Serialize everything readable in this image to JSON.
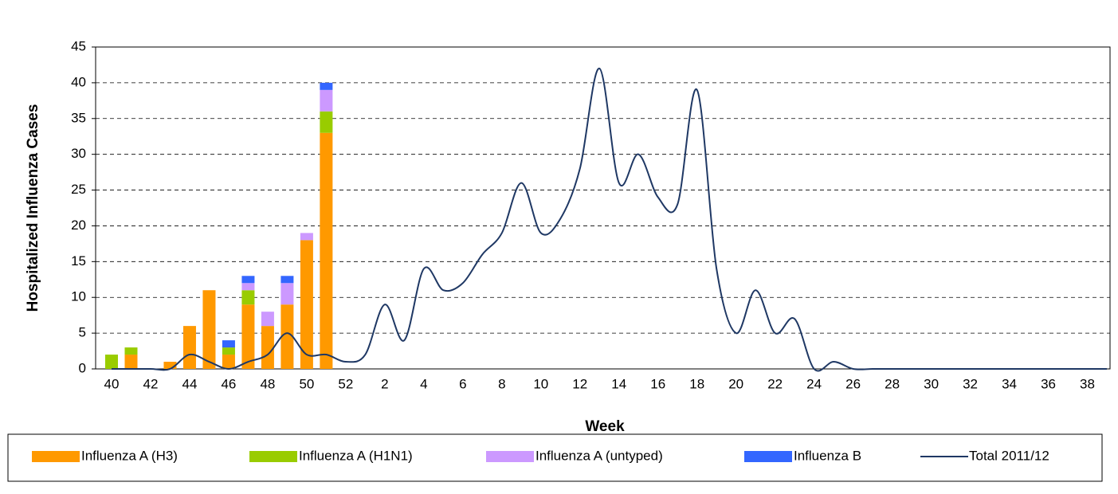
{
  "chart_data": {
    "type": "stacked-bar-line",
    "x_label": "Week",
    "y_label": "Hospitalized Influenza Cases",
    "categories": [
      "40",
      null,
      "42",
      null,
      "44",
      null,
      "46",
      null,
      "48",
      null,
      "50",
      null,
      "52",
      null,
      "2",
      null,
      "4",
      null,
      "6",
      null,
      "8",
      null,
      "10",
      null,
      "12",
      null,
      "14",
      null,
      "16",
      null,
      "18",
      null,
      "20",
      null,
      "22",
      null,
      "24",
      null,
      "26",
      null,
      "28",
      null,
      "30",
      null,
      "32",
      null,
      "34",
      null,
      "36",
      null,
      "38",
      null
    ],
    "ylim": [
      0,
      45
    ],
    "yticks": [
      0,
      5,
      10,
      15,
      20,
      25,
      30,
      35,
      40,
      45
    ],
    "grid": true,
    "series": [
      {
        "name": "Influenza A (H3)",
        "kind": "bar",
        "color": "#ff9900",
        "values": [
          0,
          2,
          0,
          1,
          6,
          11,
          2,
          9,
          6,
          9,
          18,
          33,
          null,
          null,
          null,
          null,
          null,
          null,
          null,
          null,
          null,
          null,
          null,
          null,
          null,
          null,
          null,
          null,
          null,
          null,
          null,
          null,
          null,
          null,
          null,
          null,
          null,
          null,
          null,
          null,
          null,
          null,
          null,
          null,
          null,
          null,
          null,
          null,
          null,
          null,
          null,
          null
        ]
      },
      {
        "name": "Influenza A (H1N1)",
        "kind": "bar",
        "color": "#99cc00",
        "values": [
          2,
          1,
          0,
          0,
          0,
          0,
          1,
          2,
          0,
          0,
          0,
          3,
          null,
          null,
          null,
          null,
          null,
          null,
          null,
          null,
          null,
          null,
          null,
          null,
          null,
          null,
          null,
          null,
          null,
          null,
          null,
          null,
          null,
          null,
          null,
          null,
          null,
          null,
          null,
          null,
          null,
          null,
          null,
          null,
          null,
          null,
          null,
          null,
          null,
          null,
          null,
          null
        ]
      },
      {
        "name": "Influenza A (untyped)",
        "kind": "bar",
        "color": "#cc99ff",
        "values": [
          0,
          0,
          0,
          0,
          0,
          0,
          0,
          1,
          2,
          3,
          1,
          3,
          null,
          null,
          null,
          null,
          null,
          null,
          null,
          null,
          null,
          null,
          null,
          null,
          null,
          null,
          null,
          null,
          null,
          null,
          null,
          null,
          null,
          null,
          null,
          null,
          null,
          null,
          null,
          null,
          null,
          null,
          null,
          null,
          null,
          null,
          null,
          null,
          null,
          null,
          null,
          null
        ]
      },
      {
        "name": "Influenza B",
        "kind": "bar",
        "color": "#3366ff",
        "values": [
          0,
          0,
          0,
          0,
          0,
          0,
          1,
          1,
          0,
          1,
          0,
          1,
          null,
          null,
          null,
          null,
          null,
          null,
          null,
          null,
          null,
          null,
          null,
          null,
          null,
          null,
          null,
          null,
          null,
          null,
          null,
          null,
          null,
          null,
          null,
          null,
          null,
          null,
          null,
          null,
          null,
          null,
          null,
          null,
          null,
          null,
          null,
          null,
          null,
          null,
          null,
          null
        ]
      },
      {
        "name": "Total 2011/12",
        "kind": "line",
        "color": "#1f3864",
        "values": [
          0,
          0,
          0,
          0,
          2,
          1,
          0,
          1,
          2,
          5,
          2,
          2,
          1,
          2,
          9,
          4,
          14,
          11,
          12,
          16,
          19,
          26,
          19,
          21,
          28,
          42,
          26,
          30,
          24,
          23,
          39,
          14,
          5,
          11,
          5,
          7,
          0,
          1,
          0,
          0,
          0,
          0,
          0,
          0,
          0,
          0,
          0,
          0,
          0,
          0,
          0,
          0
        ]
      }
    ]
  }
}
